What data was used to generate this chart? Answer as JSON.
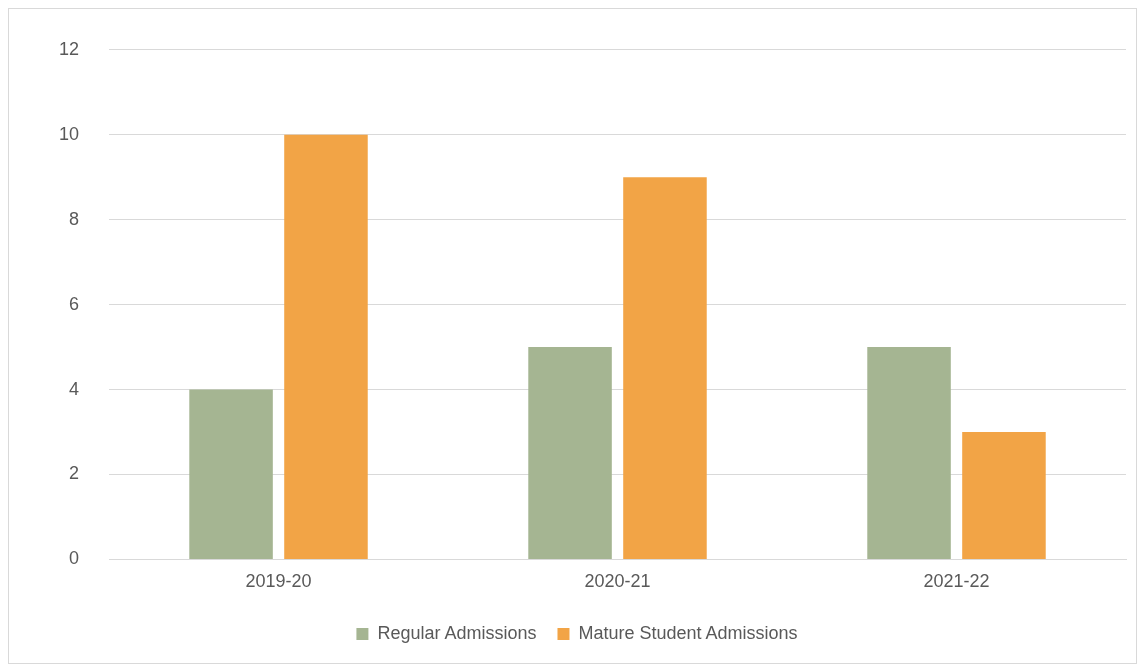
{
  "chart_data": {
    "type": "bar",
    "categories": [
      "2019-20",
      "2020-21",
      "2021-22"
    ],
    "series": [
      {
        "name": "Regular Admissions",
        "color": "#a5b592",
        "values": [
          4,
          5,
          5
        ]
      },
      {
        "name": "Mature Student Admissions",
        "color": "#f2a446",
        "values": [
          10,
          9,
          3
        ]
      }
    ],
    "ylim": [
      0,
      12
    ],
    "yticks": [
      0,
      2,
      4,
      6,
      8,
      10,
      12
    ],
    "grid": "y",
    "legend": "bottom"
  }
}
